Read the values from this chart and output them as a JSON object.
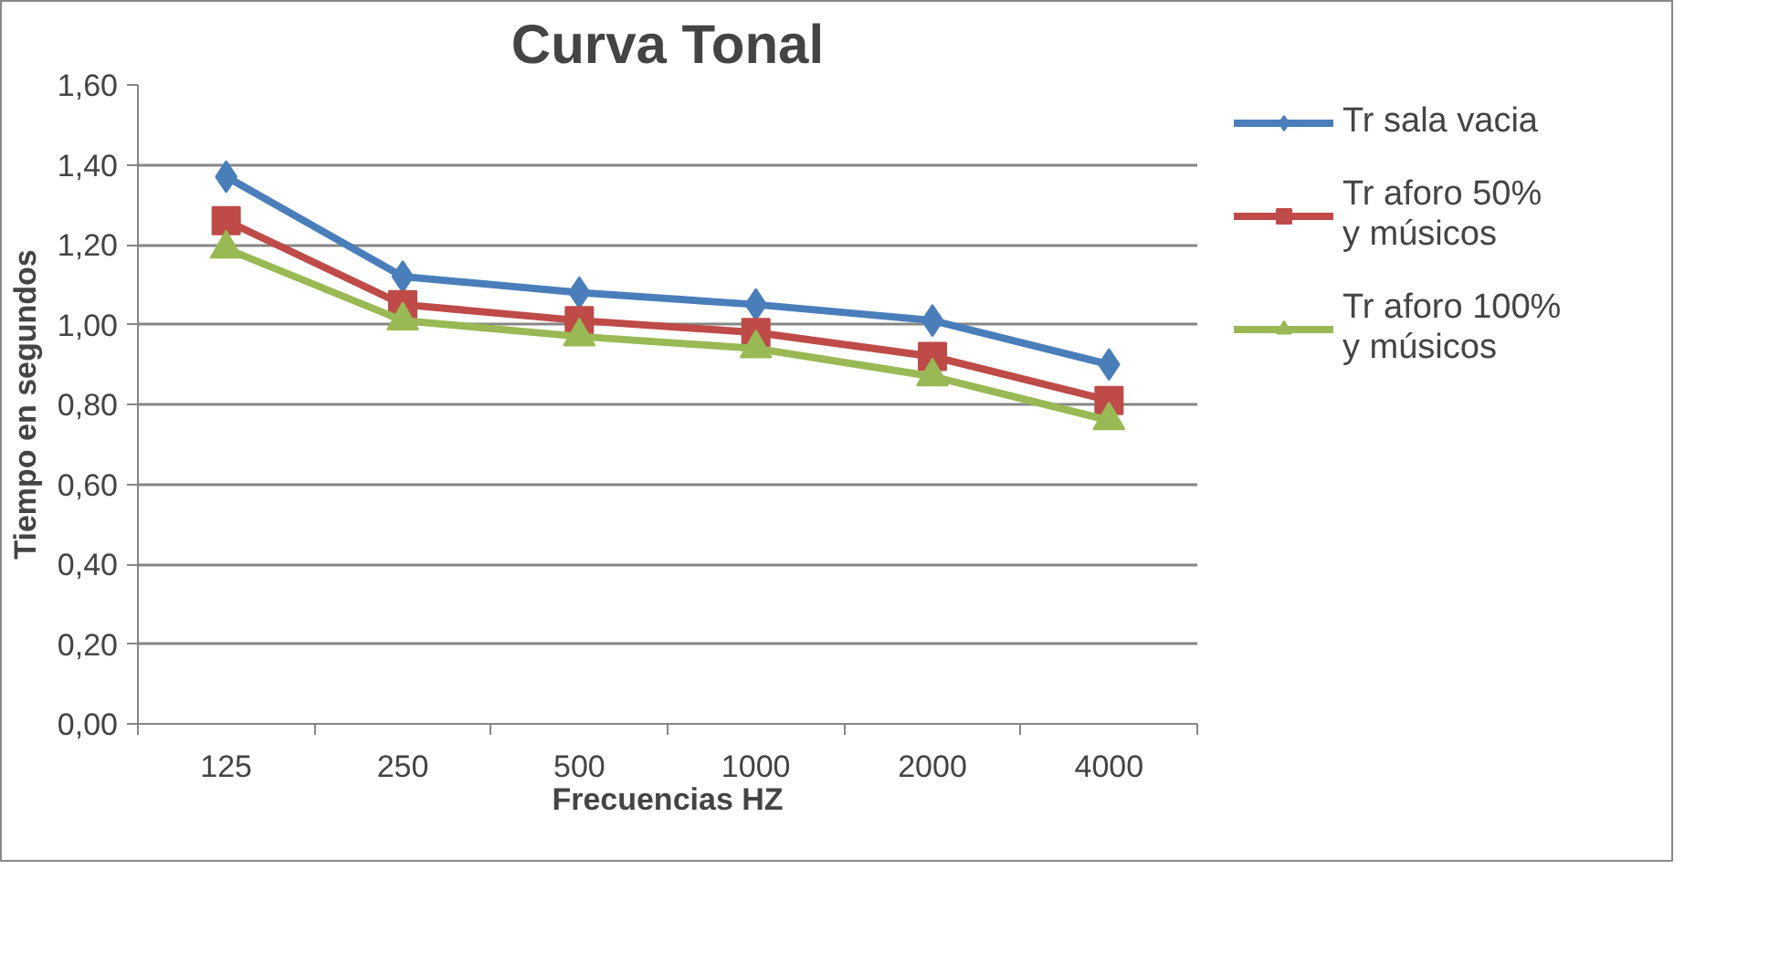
{
  "chart_data": {
    "type": "line",
    "title": "Curva Tonal",
    "xlabel": "Frecuencias HZ",
    "ylabel": "Tiempo en segundos",
    "categories": [
      "125",
      "250",
      "500",
      "1000",
      "2000",
      "4000"
    ],
    "series": [
      {
        "name": "Tr sala vacia",
        "color": "#4a7ebb",
        "marker": "diamond",
        "values": [
          1.37,
          1.12,
          1.08,
          1.05,
          1.01,
          0.9
        ]
      },
      {
        "name": "Tr aforo 50% y músicos",
        "color": "#be4b48",
        "marker": "square",
        "values": [
          1.26,
          1.05,
          1.01,
          0.98,
          0.92,
          0.81
        ]
      },
      {
        "name": "Tr aforo 100% y músicos",
        "color": "#98b954",
        "marker": "triangle",
        "values": [
          1.19,
          1.01,
          0.97,
          0.94,
          0.87,
          0.76
        ]
      }
    ],
    "ylim": [
      0,
      1.6
    ],
    "yticks": [
      {
        "value": 0,
        "label": "0,00"
      },
      {
        "value": 0.2,
        "label": "0,20"
      },
      {
        "value": 0.4,
        "label": "0,40"
      },
      {
        "value": 0.6,
        "label": "0,60"
      },
      {
        "value": 0.8,
        "label": "0,80"
      },
      {
        "value": 1.0,
        "label": "1,00"
      },
      {
        "value": 1.2,
        "label": "1,20"
      },
      {
        "value": 1.4,
        "label": "1,40"
      },
      {
        "value": 1.6,
        "label": "1,60"
      }
    ],
    "grid": "y",
    "legend": "right",
    "line_style": "solid"
  }
}
